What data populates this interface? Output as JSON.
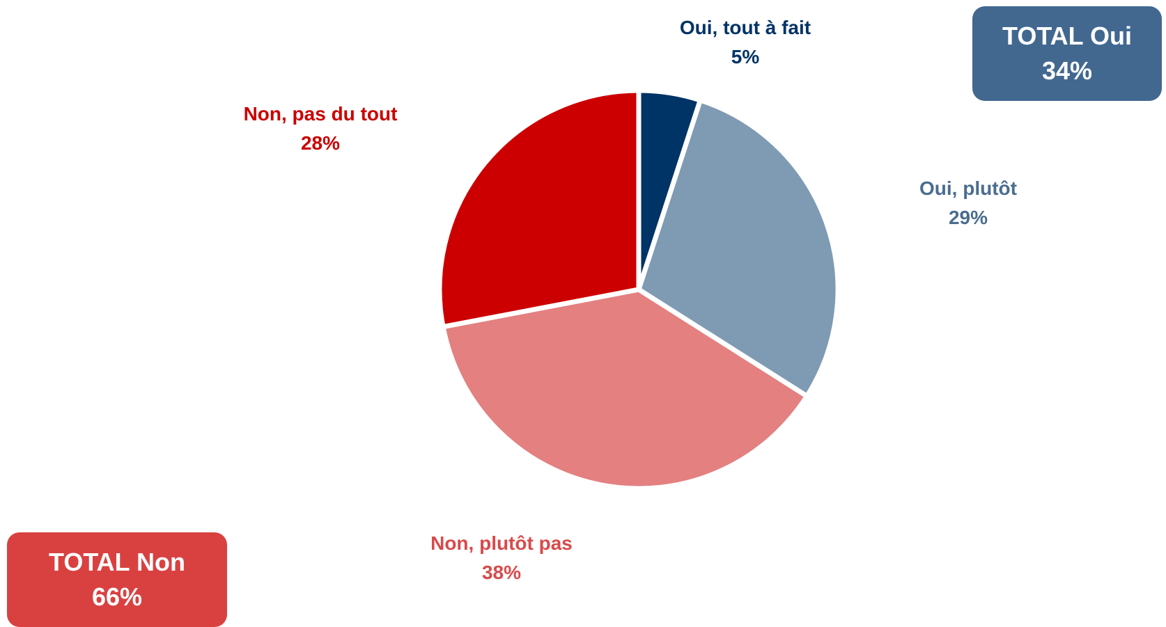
{
  "chart_data": {
    "type": "pie",
    "slices": [
      {
        "label": "Oui, tout à fait",
        "value": 5,
        "value_label": "5%",
        "color": "#003366",
        "label_color": "#003366"
      },
      {
        "label": "Oui, plutôt",
        "value": 29,
        "value_label": "29%",
        "color": "#7f9bb3",
        "label_color": "#4a6d8f"
      },
      {
        "label": "Non, plutôt pas",
        "value": 38,
        "value_label": "38%",
        "color": "#e48080",
        "label_color": "#d94a4a"
      },
      {
        "label": "Non, pas du tout",
        "value": 28,
        "value_label": "28%",
        "color": "#cc0000",
        "label_color": "#cc0000"
      }
    ],
    "start_angle": "12 o'clock",
    "direction": "clockwise"
  },
  "totals": {
    "oui": {
      "title": "TOTAL Oui",
      "value": "34%",
      "color": "#426890"
    },
    "non": {
      "title": "TOTAL Non",
      "value": "66%",
      "color": "#d94141"
    }
  }
}
